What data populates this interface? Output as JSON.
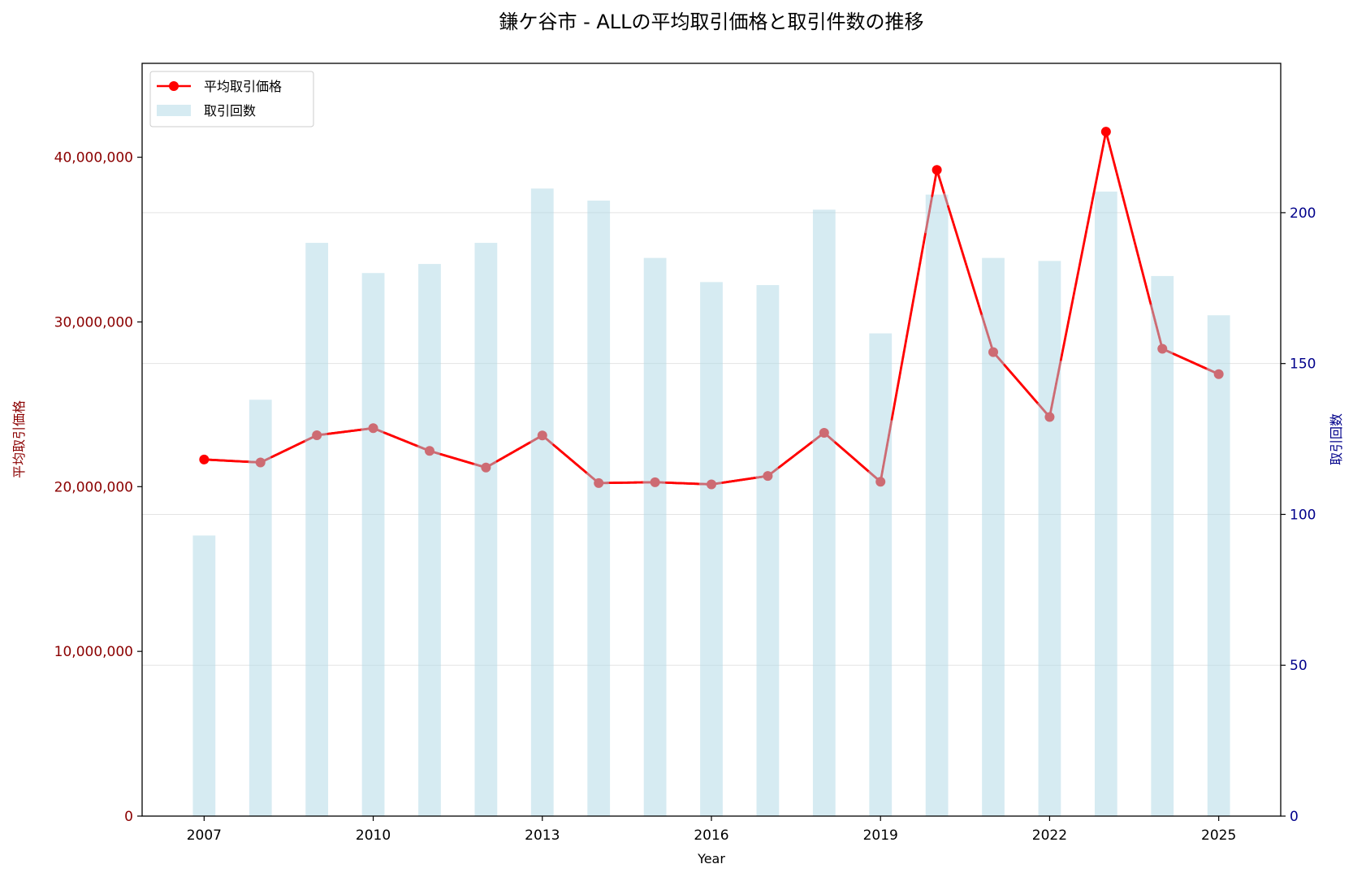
{
  "chart_data": {
    "type": "bar+line",
    "title": "鎌ケ谷市 - ALLの平均取引価格と取引件数の推移",
    "xlabel": "Year",
    "ylabel_left": "平均取引価格",
    "ylabel_right": "取引回数",
    "x": [
      2007,
      2008,
      2009,
      2010,
      2011,
      2012,
      2013,
      2014,
      2015,
      2016,
      2017,
      2018,
      2019,
      2020,
      2021,
      2022,
      2023,
      2024,
      2025
    ],
    "xlim": [
      2005.9,
      2026.1
    ],
    "x_ticks": [
      2007,
      2010,
      2013,
      2016,
      2019,
      2022,
      2025
    ],
    "x_tick_labels": [
      "2007",
      "2010",
      "2013",
      "2016",
      "2019",
      "2022",
      "2025"
    ],
    "ylim_left": [
      0,
      45700000
    ],
    "y_ticks_left": [
      0,
      10000000,
      20000000,
      30000000,
      40000000
    ],
    "y_tick_labels_left": [
      "0",
      "10,000,000",
      "20,000,000",
      "30,000,000",
      "40,000,000"
    ],
    "ylim_right": [
      0,
      249.5
    ],
    "y_ticks_right": [
      0,
      50,
      100,
      150,
      200
    ],
    "y_tick_labels_right": [
      "0",
      "50",
      "100",
      "150",
      "200"
    ],
    "grid": "right-axis horizontal",
    "legend_position": "top-left",
    "series": [
      {
        "name": "平均取引価格",
        "type": "line",
        "axis": "left",
        "color": "#ff0000",
        "muted_color": "#cd6b73",
        "values": [
          21650000,
          21470000,
          23120000,
          23550000,
          22170000,
          21160000,
          23110000,
          20220000,
          20270000,
          20140000,
          20650000,
          23270000,
          20300000,
          39230000,
          28170000,
          24230000,
          41550000,
          28370000,
          26830000
        ]
      },
      {
        "name": "取引回数",
        "type": "bar",
        "axis": "right",
        "color": "#add8e6",
        "opacity": 0.5,
        "values": [
          93,
          138,
          190,
          180,
          183,
          190,
          208,
          204,
          185,
          177,
          176,
          201,
          160,
          206,
          185,
          184,
          207,
          179,
          166
        ]
      }
    ],
    "colors": {
      "left_axis": "#8b0000",
      "right_axis": "#00008b",
      "grid": "#dddddd"
    }
  }
}
